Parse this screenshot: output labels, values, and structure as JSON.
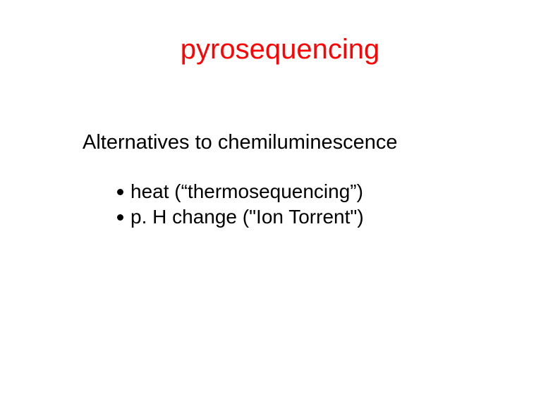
{
  "title": {
    "text": "pyrosequencing",
    "color": "#fd0303",
    "fontsize": 40,
    "fontweight": "400"
  },
  "subtitle": {
    "text": "Alternatives to chemiluminescence",
    "color": "#000000",
    "fontsize": 29,
    "fontweight": "400"
  },
  "bullets": {
    "items": [
      {
        "text": "heat (“thermosequencing”)"
      },
      {
        "text": "p. H change (\"Ion Torrent\")"
      }
    ],
    "color": "#000000",
    "fontsize": 28,
    "fontweight": "400",
    "bullet_color": "#000000"
  },
  "background_color": "#ffffff"
}
